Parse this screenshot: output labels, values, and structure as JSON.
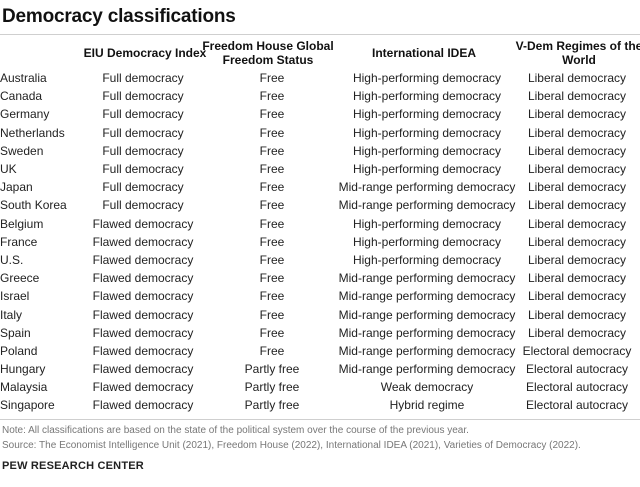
{
  "title": "Democracy classifications",
  "columns": {
    "eiu": "EIU Democracy Index",
    "freedom_house": "Freedom House Global Freedom Status",
    "idea": "International IDEA",
    "vdem": "V-Dem Regimes of the World"
  },
  "rows": [
    {
      "country": "Australia",
      "eiu": "Full democracy",
      "fh": "Free",
      "idea": "High-performing democracy",
      "vdem": "Liberal democracy"
    },
    {
      "country": "Canada",
      "eiu": "Full democracy",
      "fh": "Free",
      "idea": "High-performing democracy",
      "vdem": "Liberal democracy"
    },
    {
      "country": "Germany",
      "eiu": "Full democracy",
      "fh": "Free",
      "idea": "High-performing democracy",
      "vdem": "Liberal democracy"
    },
    {
      "country": "Netherlands",
      "eiu": "Full democracy",
      "fh": "Free",
      "idea": "High-performing democracy",
      "vdem": "Liberal democracy"
    },
    {
      "country": "Sweden",
      "eiu": "Full democracy",
      "fh": "Free",
      "idea": "High-performing democracy",
      "vdem": "Liberal democracy"
    },
    {
      "country": "UK",
      "eiu": "Full democracy",
      "fh": "Free",
      "idea": "High-performing democracy",
      "vdem": "Liberal democracy"
    },
    {
      "country": "Japan",
      "eiu": "Full democracy",
      "fh": "Free",
      "idea": "Mid-range performing democracy",
      "vdem": "Liberal democracy"
    },
    {
      "country": "South Korea",
      "eiu": "Full democracy",
      "fh": "Free",
      "idea": "Mid-range performing democracy",
      "vdem": "Liberal democracy"
    },
    {
      "country": "Belgium",
      "eiu": "Flawed democracy",
      "fh": "Free",
      "idea": "High-performing democracy",
      "vdem": "Liberal democracy"
    },
    {
      "country": "France",
      "eiu": "Flawed democracy",
      "fh": "Free",
      "idea": "High-performing democracy",
      "vdem": "Liberal democracy"
    },
    {
      "country": "U.S.",
      "eiu": "Flawed democracy",
      "fh": "Free",
      "idea": "High-performing democracy",
      "vdem": "Liberal democracy"
    },
    {
      "country": "Greece",
      "eiu": "Flawed democracy",
      "fh": "Free",
      "idea": "Mid-range performing democracy",
      "vdem": "Liberal democracy"
    },
    {
      "country": "Israel",
      "eiu": "Flawed democracy",
      "fh": "Free",
      "idea": "Mid-range performing democracy",
      "vdem": "Liberal democracy"
    },
    {
      "country": "Italy",
      "eiu": "Flawed democracy",
      "fh": "Free",
      "idea": "Mid-range performing democracy",
      "vdem": "Liberal democracy"
    },
    {
      "country": "Spain",
      "eiu": "Flawed democracy",
      "fh": "Free",
      "idea": "Mid-range performing democracy",
      "vdem": "Liberal democracy"
    },
    {
      "country": "Poland",
      "eiu": "Flawed democracy",
      "fh": "Free",
      "idea": "Mid-range performing democracy",
      "vdem": "Electoral democracy"
    },
    {
      "country": "Hungary",
      "eiu": "Flawed democracy",
      "fh": "Partly free",
      "idea": "Mid-range performing democracy",
      "vdem": "Electoral autocracy"
    },
    {
      "country": "Malaysia",
      "eiu": "Flawed democracy",
      "fh": "Partly free",
      "idea": "Weak democracy",
      "vdem": "Electoral autocracy"
    },
    {
      "country": "Singapore",
      "eiu": "Flawed democracy",
      "fh": "Partly free",
      "idea": "Hybrid regime",
      "vdem": "Electoral autocracy"
    }
  ],
  "note": "Note: All classifications are based on the state of the political system over the course of the previous year.",
  "source": "Source: The Economist Intelligence Unit (2021), Freedom House (2022), International IDEA (2021), Varieties of Democracy (2022).",
  "org": "PEW RESEARCH CENTER"
}
